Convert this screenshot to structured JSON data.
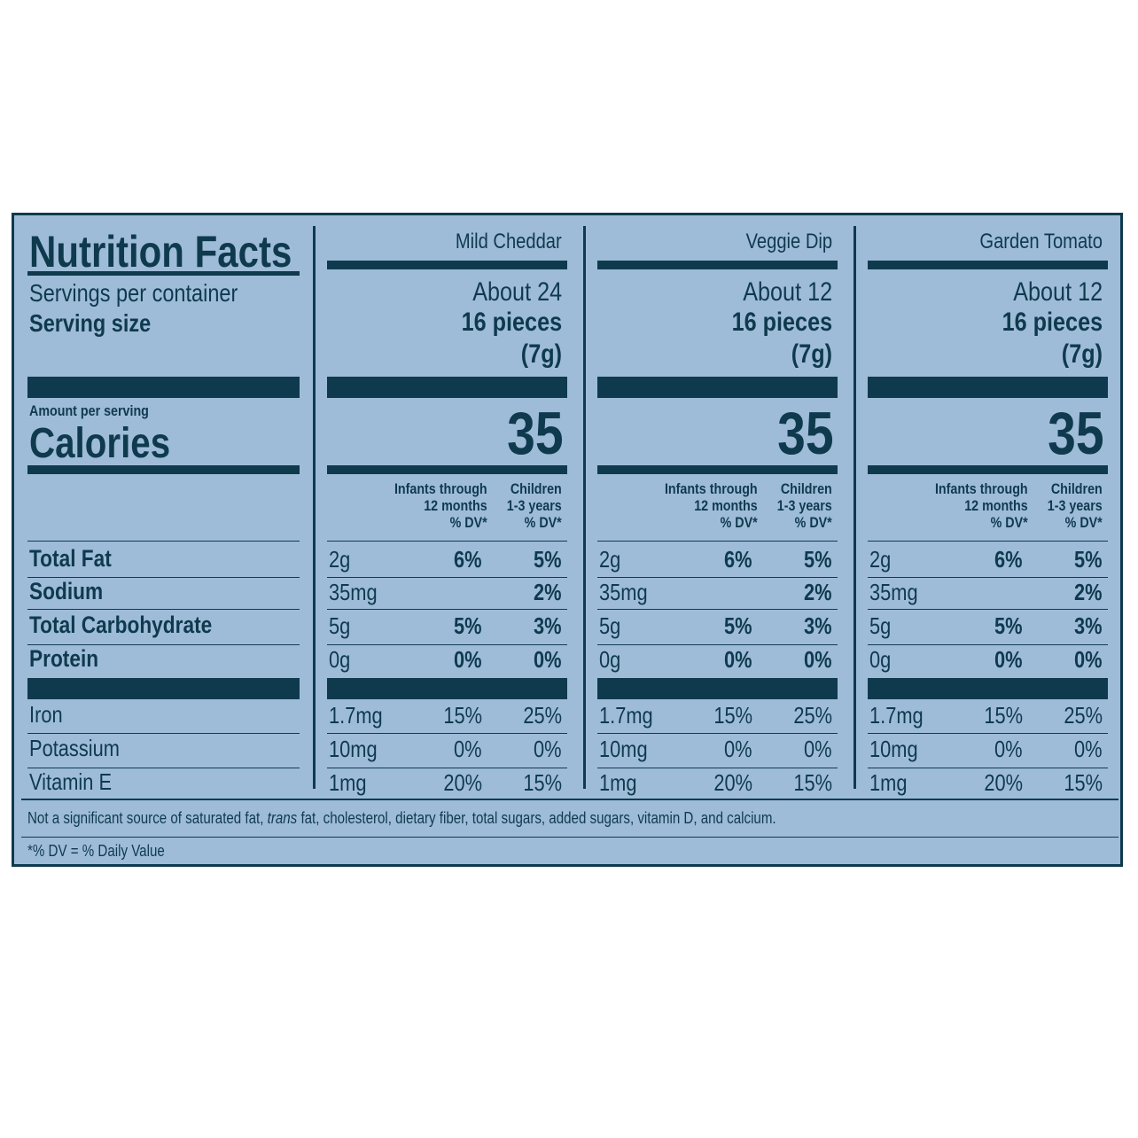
{
  "title": "Nutrition Facts",
  "servings_label": "Servings per container",
  "serving_size_label": "Serving size",
  "amount_per_serving": "Amount per serving",
  "calories_label": "Calories",
  "dv_headers": {
    "infants": [
      "Infants through",
      "12 months",
      "% DV*"
    ],
    "children": [
      "Children",
      "1-3 years",
      "% DV*"
    ]
  },
  "nutrients": [
    {
      "name": "Total Fat",
      "bold": true
    },
    {
      "name": "Sodium",
      "bold": true
    },
    {
      "name": "Total Carbohydrate",
      "bold": true
    },
    {
      "name": "Protein",
      "bold": true
    },
    {
      "name": "Iron",
      "bold": false
    },
    {
      "name": "Potassium",
      "bold": false
    },
    {
      "name": "Vitamin E",
      "bold": false
    }
  ],
  "products": [
    {
      "name": "Mild Cheddar",
      "servings": "About 24",
      "serving_pieces": "16 pieces",
      "serving_grams": "(7g)",
      "calories": "35",
      "values": [
        {
          "amount": "2g",
          "infants": "6%",
          "children": "5%"
        },
        {
          "amount": "35mg",
          "infants": "",
          "children": "2%"
        },
        {
          "amount": "5g",
          "infants": "5%",
          "children": "3%"
        },
        {
          "amount": "0g",
          "infants": "0%",
          "children": "0%"
        },
        {
          "amount": "1.7mg",
          "infants": "15%",
          "children": "25%"
        },
        {
          "amount": "10mg",
          "infants": "0%",
          "children": "0%"
        },
        {
          "amount": "1mg",
          "infants": "20%",
          "children": "15%"
        }
      ]
    },
    {
      "name": "Veggie Dip",
      "servings": "About 12",
      "serving_pieces": "16 pieces",
      "serving_grams": "(7g)",
      "calories": "35",
      "values": [
        {
          "amount": "2g",
          "infants": "6%",
          "children": "5%"
        },
        {
          "amount": "35mg",
          "infants": "",
          "children": "2%"
        },
        {
          "amount": "5g",
          "infants": "5%",
          "children": "3%"
        },
        {
          "amount": "0g",
          "infants": "0%",
          "children": "0%"
        },
        {
          "amount": "1.7mg",
          "infants": "15%",
          "children": "25%"
        },
        {
          "amount": "10mg",
          "infants": "0%",
          "children": "0%"
        },
        {
          "amount": "1mg",
          "infants": "20%",
          "children": "15%"
        }
      ]
    },
    {
      "name": "Garden Tomato",
      "servings": "About 12",
      "serving_pieces": "16 pieces",
      "serving_grams": "(7g)",
      "calories": "35",
      "values": [
        {
          "amount": "2g",
          "infants": "6%",
          "children": "5%"
        },
        {
          "amount": "35mg",
          "infants": "",
          "children": "2%"
        },
        {
          "amount": "5g",
          "infants": "5%",
          "children": "3%"
        },
        {
          "amount": "0g",
          "infants": "0%",
          "children": "0%"
        },
        {
          "amount": "1.7mg",
          "infants": "15%",
          "children": "25%"
        },
        {
          "amount": "10mg",
          "infants": "0%",
          "children": "0%"
        },
        {
          "amount": "1mg",
          "infants": "20%",
          "children": "15%"
        }
      ]
    }
  ],
  "footnote_parts": {
    "before": "Not a significant source of saturated fat, ",
    "italic": "trans",
    "after": " fat, cholesterol, dietary fiber, total sugars, added sugars, vitamin D, and calcium."
  },
  "dv_note": "*% DV = % Daily Value",
  "colors": {
    "ink": "#0f3a4e",
    "panel": "#9ebcd8"
  }
}
